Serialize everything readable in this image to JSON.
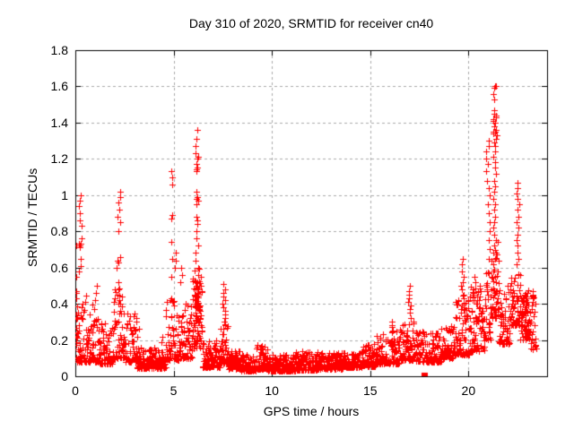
{
  "chart_data": {
    "type": "scatter",
    "title": "Day 310 of 2020, SRMTID for receiver cn40",
    "xlabel": "GPS time / hours",
    "ylabel": "SRMTID / TECUs",
    "xlim": [
      0,
      24
    ],
    "ylim": [
      0,
      1.8
    ],
    "xticks": [
      {
        "v": 0,
        "label": "0"
      },
      {
        "v": 5,
        "label": "5"
      },
      {
        "v": 10,
        "label": "10"
      },
      {
        "v": 15,
        "label": "15"
      },
      {
        "v": 20,
        "label": "20"
      }
    ],
    "yticks": [
      {
        "v": 0,
        "label": "0"
      },
      {
        "v": 0.2,
        "label": "0.2"
      },
      {
        "v": 0.4,
        "label": "0.4"
      },
      {
        "v": 0.6,
        "label": "0.6"
      },
      {
        "v": 0.8,
        "label": "0.8"
      },
      {
        "v": 1,
        "label": "1"
      },
      {
        "v": 1.2,
        "label": "1.2"
      },
      {
        "v": 1.4,
        "label": "1.4"
      },
      {
        "v": 1.6,
        "label": "1.6"
      },
      {
        "v": 1.8,
        "label": "1.8"
      }
    ],
    "grid": {
      "on": true,
      "style": "dashed",
      "color": "#a8a8a8"
    },
    "marker": {
      "glyph": "plus",
      "size": 7,
      "color": "#ff0000"
    },
    "border_color": "#000000",
    "legend": null,
    "scatter_bands": [
      {
        "t_start": 0.02,
        "t_end": 0.08,
        "count": 10,
        "y_min": 0.1,
        "y_max": 0.5,
        "bias": 1.6
      },
      {
        "t_start": 0.05,
        "t_end": 0.55,
        "count": 55,
        "y_min": 0.08,
        "y_max": 0.45,
        "bias": 2.2
      },
      {
        "t_start": 0.55,
        "t_end": 1.2,
        "count": 70,
        "y_min": 0.08,
        "y_max": 0.4,
        "bias": 2.4
      },
      {
        "t_start": 1.2,
        "t_end": 1.9,
        "count": 70,
        "y_min": 0.07,
        "y_max": 0.3,
        "bias": 2.4
      },
      {
        "t_start": 1.9,
        "t_end": 2.45,
        "count": 55,
        "y_min": 0.1,
        "y_max": 0.5,
        "bias": 2.0
      },
      {
        "t_start": 2.45,
        "t_end": 3.1,
        "count": 55,
        "y_min": 0.08,
        "y_max": 0.35,
        "bias": 2.2
      },
      {
        "t_start": 3.1,
        "t_end": 4.6,
        "count": 150,
        "y_min": 0.045,
        "y_max": 0.16,
        "bias": 2.0
      },
      {
        "t_start": 4.6,
        "t_end": 5.3,
        "count": 65,
        "y_min": 0.09,
        "y_max": 0.45,
        "bias": 2.0
      },
      {
        "t_start": 5.3,
        "t_end": 5.95,
        "count": 60,
        "y_min": 0.1,
        "y_max": 0.42,
        "bias": 2.2
      },
      {
        "t_start": 5.95,
        "t_end": 6.45,
        "count": 60,
        "y_min": 0.15,
        "y_max": 0.55,
        "bias": 1.8
      },
      {
        "t_start": 6.05,
        "t_end": 6.35,
        "count": 30,
        "y_min": 0.3,
        "y_max": 0.6,
        "bias": 1.5
      },
      {
        "t_start": 6.45,
        "t_end": 7.35,
        "count": 85,
        "y_min": 0.05,
        "y_max": 0.2,
        "bias": 2.2
      },
      {
        "t_start": 7.35,
        "t_end": 7.8,
        "count": 45,
        "y_min": 0.07,
        "y_max": 0.3,
        "bias": 2.0
      },
      {
        "t_start": 7.8,
        "t_end": 8.4,
        "count": 60,
        "y_min": 0.04,
        "y_max": 0.14,
        "bias": 2.0
      },
      {
        "t_start": 8.4,
        "t_end": 9.2,
        "count": 80,
        "y_min": 0.03,
        "y_max": 0.12,
        "bias": 2.0
      },
      {
        "t_start": 9.2,
        "t_end": 9.8,
        "count": 60,
        "y_min": 0.04,
        "y_max": 0.18,
        "bias": 2.2
      },
      {
        "t_start": 9.8,
        "t_end": 11.2,
        "count": 140,
        "y_min": 0.03,
        "y_max": 0.12,
        "bias": 2.2
      },
      {
        "t_start": 11.2,
        "t_end": 12.4,
        "count": 120,
        "y_min": 0.035,
        "y_max": 0.14,
        "bias": 2.2
      },
      {
        "t_start": 12.4,
        "t_end": 13.6,
        "count": 120,
        "y_min": 0.04,
        "y_max": 0.13,
        "bias": 2.2
      },
      {
        "t_start": 13.6,
        "t_end": 14.6,
        "count": 100,
        "y_min": 0.05,
        "y_max": 0.15,
        "bias": 2.2
      },
      {
        "t_start": 14.6,
        "t_end": 15.3,
        "count": 70,
        "y_min": 0.055,
        "y_max": 0.18,
        "bias": 2.2
      },
      {
        "t_start": 15.3,
        "t_end": 16.5,
        "count": 115,
        "y_min": 0.07,
        "y_max": 0.26,
        "bias": 2.2
      },
      {
        "t_start": 16.5,
        "t_end": 17.25,
        "count": 70,
        "y_min": 0.09,
        "y_max": 0.3,
        "bias": 2.0
      },
      {
        "t_start": 17.3,
        "t_end": 17.75,
        "count": 40,
        "y_min": 0.08,
        "y_max": 0.25,
        "bias": 2.0
      },
      {
        "t_start": 17.8,
        "t_end": 18.6,
        "count": 75,
        "y_min": 0.08,
        "y_max": 0.24,
        "bias": 2.2
      },
      {
        "t_start": 18.6,
        "t_end": 19.3,
        "count": 70,
        "y_min": 0.1,
        "y_max": 0.3,
        "bias": 2.2
      },
      {
        "t_start": 19.3,
        "t_end": 20.1,
        "count": 80,
        "y_min": 0.12,
        "y_max": 0.45,
        "bias": 2.2
      },
      {
        "t_start": 20.1,
        "t_end": 20.85,
        "count": 75,
        "y_min": 0.14,
        "y_max": 0.5,
        "bias": 2.0
      },
      {
        "t_start": 20.85,
        "t_end": 21.15,
        "count": 30,
        "y_min": 0.2,
        "y_max": 0.6,
        "bias": 1.8
      },
      {
        "t_start": 21.15,
        "t_end": 21.55,
        "count": 45,
        "y_min": 0.32,
        "y_max": 0.75,
        "bias": 1.6
      },
      {
        "t_start": 21.55,
        "t_end": 22.1,
        "count": 55,
        "y_min": 0.18,
        "y_max": 0.5,
        "bias": 2.0
      },
      {
        "t_start": 22.1,
        "t_end": 22.65,
        "count": 65,
        "y_min": 0.28,
        "y_max": 0.58,
        "bias": 1.8
      },
      {
        "t_start": 22.65,
        "t_end": 23.1,
        "count": 55,
        "y_min": 0.2,
        "y_max": 0.48,
        "bias": 1.8
      },
      {
        "t_start": 23.1,
        "t_end": 23.45,
        "count": 25,
        "y_min": 0.15,
        "y_max": 0.45,
        "bias": 1.6
      }
    ],
    "spike_columns": [
      {
        "t": 0.25,
        "t_spread": 0.08,
        "y_values": [
          1.0,
          0.97,
          0.94,
          0.9,
          0.86,
          0.83,
          0.76,
          0.73,
          0.73,
          0.72,
          0.71,
          0.65,
          0.61,
          0.58
        ]
      },
      {
        "t": 0.05,
        "t_spread": 0.03,
        "y_values": [
          0.72,
          0.55,
          0.47,
          0.43
        ]
      },
      {
        "t": 1.05,
        "t_spread": 0.05,
        "y_values": [
          0.5,
          0.46,
          0.42
        ]
      },
      {
        "t": 2.2,
        "t_spread": 0.1,
        "y_values": [
          1.02,
          0.99,
          0.96,
          0.92,
          0.88,
          0.85,
          0.8,
          0.66,
          0.64,
          0.63,
          0.6,
          0.52,
          0.48,
          0.45,
          0.42
        ]
      },
      {
        "t": 3.2,
        "t_spread": 0.1,
        "y_values": [
          0.3,
          0.26,
          0.22
        ]
      },
      {
        "t": 4.45,
        "t_spread": 0.06,
        "y_values": [
          0.22,
          0.19
        ]
      },
      {
        "t": 4.9,
        "t_spread": 0.06,
        "y_values": [
          1.13,
          1.1,
          1.06,
          0.89,
          0.87,
          0.74,
          0.65,
          0.55
        ]
      },
      {
        "t": 5.1,
        "t_spread": 0.05,
        "y_values": [
          0.68,
          0.64,
          0.6
        ]
      },
      {
        "t": 5.38,
        "t_spread": 0.05,
        "y_values": [
          0.6,
          0.56,
          0.52
        ]
      },
      {
        "t": 6.17,
        "t_spread": 0.08,
        "y_values": [
          1.36,
          1.31,
          1.27,
          1.23,
          1.21,
          1.2,
          1.2,
          1.17,
          1.15,
          1.14,
          1.13,
          1.02,
          0.99,
          0.98,
          0.97,
          0.95,
          0.88,
          0.86,
          0.84,
          0.8,
          0.76,
          0.72,
          0.68,
          0.64,
          0.6,
          0.56,
          0.52,
          0.48,
          0.45,
          0.42
        ]
      },
      {
        "t": 7.55,
        "t_spread": 0.07,
        "y_values": [
          0.51,
          0.48,
          0.46,
          0.44,
          0.42,
          0.4,
          0.38,
          0.36,
          0.34,
          0.32,
          0.3,
          0.28,
          0.26
        ]
      },
      {
        "t": 16.1,
        "t_spread": 0.1,
        "y_values": [
          0.3,
          0.28,
          0.27,
          0.25,
          0.24
        ]
      },
      {
        "t": 17.0,
        "t_spread": 0.06,
        "y_values": [
          0.5,
          0.47,
          0.45,
          0.43,
          0.41,
          0.39,
          0.37,
          0.35,
          0.32
        ]
      },
      {
        "t": 19.7,
        "t_spread": 0.1,
        "y_values": [
          0.65,
          0.62,
          0.58,
          0.55,
          0.52,
          0.5,
          0.48,
          0.45,
          0.43,
          0.4,
          0.38,
          0.35,
          0.33
        ]
      },
      {
        "t": 20.3,
        "t_spread": 0.07,
        "y_values": [
          0.55,
          0.52,
          0.48,
          0.45,
          0.42
        ]
      },
      {
        "t": 20.55,
        "t_spread": 0.06,
        "y_values": [
          0.5,
          0.47,
          0.44
        ]
      },
      {
        "t": 21.0,
        "t_spread": 0.1,
        "y_values": [
          1.3,
          1.27,
          1.24,
          1.2,
          1.17,
          1.13,
          1.08,
          1.04,
          1.0,
          0.95,
          0.9,
          0.85,
          0.8,
          0.75,
          0.7,
          0.65
        ]
      },
      {
        "t": 21.35,
        "t_spread": 0.09,
        "y_values": [
          1.6,
          1.6,
          1.59,
          1.56,
          1.53,
          1.47,
          1.45,
          1.44,
          1.43,
          1.42,
          1.41,
          1.4,
          1.38,
          1.36,
          1.35,
          1.35,
          1.34,
          1.33,
          1.31,
          1.29,
          1.27,
          1.24,
          1.21,
          1.18,
          1.15,
          1.12,
          1.08,
          1.05,
          1.02,
          0.98,
          0.95,
          0.92,
          0.88,
          0.85,
          0.82,
          0.78,
          0.75,
          0.72,
          0.68,
          0.65,
          0.62,
          0.58,
          0.55,
          0.52
        ]
      },
      {
        "t": 22.5,
        "t_spread": 0.07,
        "y_values": [
          1.07,
          1.04,
          1.01,
          0.98,
          0.95,
          0.92,
          0.88,
          0.85,
          0.82,
          0.78,
          0.75,
          0.72,
          0.68,
          0.65,
          0.62
        ]
      },
      {
        "t": 22.9,
        "t_spread": 0.08,
        "y_values": [
          0.46,
          0.44,
          0.43,
          0.42,
          0.41,
          0.4,
          0.39,
          0.38,
          0.37,
          0.36
        ]
      },
      {
        "t": 23.25,
        "t_spread": 0.05,
        "y_values": [
          0.47,
          0.45,
          0.44,
          0.43,
          0.41,
          0.39
        ]
      }
    ],
    "outlier_square": {
      "t": 17.76,
      "y": 0.005,
      "color": "#ff0000"
    }
  }
}
